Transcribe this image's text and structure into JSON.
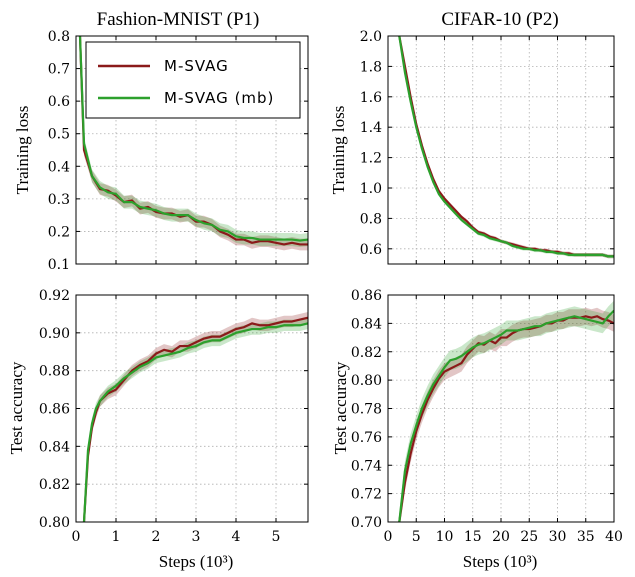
{
  "colors": {
    "m_svag": "#8b1a1a",
    "m_svag_mb": "#2ca02c"
  },
  "legend": {
    "placement": "top-right",
    "entries": [
      "M-SVAG",
      "M-SVAG (mb)"
    ]
  },
  "chart_data": [
    {
      "type": "line",
      "title": "Fashion-MNIST (P1)",
      "xlabel": "",
      "ylabel": "Training loss",
      "xlim": [
        0,
        5.8
      ],
      "ylim": [
        0.1,
        0.8
      ],
      "xticks": [
        0,
        1,
        2,
        3,
        4,
        5
      ],
      "yticks": [
        0.1,
        0.2,
        0.3,
        0.4,
        0.5,
        0.6,
        0.7,
        0.8
      ],
      "yticklabels": [
        "0.1",
        "0.2",
        "0.3",
        "0.4",
        "0.5",
        "0.6",
        "0.7",
        "0.8"
      ],
      "grid": true,
      "legend": true,
      "series": [
        {
          "name": "M-SVAG",
          "color": "#8b1a1a",
          "x": [
            0.1,
            0.2,
            0.4,
            0.6,
            0.8,
            1.0,
            1.2,
            1.4,
            1.6,
            1.8,
            2.0,
            2.2,
            2.4,
            2.6,
            2.8,
            3.0,
            3.2,
            3.4,
            3.6,
            3.8,
            4.0,
            4.2,
            4.4,
            4.6,
            4.8,
            5.0,
            5.2,
            5.4,
            5.6,
            5.8
          ],
          "y": [
            0.8,
            0.45,
            0.37,
            0.33,
            0.325,
            0.31,
            0.29,
            0.295,
            0.27,
            0.275,
            0.26,
            0.255,
            0.255,
            0.245,
            0.25,
            0.23,
            0.23,
            0.22,
            0.2,
            0.19,
            0.175,
            0.175,
            0.165,
            0.17,
            0.17,
            0.165,
            0.16,
            0.165,
            0.16,
            0.16
          ],
          "band": 0.018
        },
        {
          "name": "M-SVAG (mb)",
          "color": "#2ca02c",
          "x": [
            0.1,
            0.2,
            0.4,
            0.6,
            0.8,
            1.0,
            1.2,
            1.4,
            1.6,
            1.8,
            2.0,
            2.2,
            2.4,
            2.6,
            2.8,
            3.0,
            3.2,
            3.4,
            3.6,
            3.8,
            4.0,
            4.2,
            4.4,
            4.6,
            4.8,
            5.0,
            5.2,
            5.4,
            5.6,
            5.8
          ],
          "y": [
            0.8,
            0.47,
            0.37,
            0.335,
            0.32,
            0.315,
            0.29,
            0.29,
            0.275,
            0.27,
            0.265,
            0.255,
            0.25,
            0.25,
            0.25,
            0.235,
            0.225,
            0.22,
            0.205,
            0.2,
            0.185,
            0.18,
            0.18,
            0.175,
            0.175,
            0.175,
            0.175,
            0.175,
            0.172,
            0.175
          ],
          "band": 0.02
        }
      ]
    },
    {
      "type": "line",
      "title": "CIFAR-10 (P2)",
      "xlabel": "",
      "ylabel": "Training loss",
      "xlim": [
        0,
        40
      ],
      "ylim": [
        0.5,
        2.0
      ],
      "xticks": [
        0,
        5,
        10,
        15,
        20,
        25,
        30,
        35,
        40
      ],
      "yticks": [
        0.6,
        0.8,
        1.0,
        1.2,
        1.4,
        1.6,
        1.8,
        2.0
      ],
      "yticklabels": [
        "0.6",
        "0.8",
        "1.0",
        "1.2",
        "1.4",
        "1.6",
        "1.8",
        "2.0"
      ],
      "grid": true,
      "legend": false,
      "series": [
        {
          "name": "M-SVAG",
          "color": "#8b1a1a",
          "x": [
            2,
            3,
            4,
            5,
            6,
            7,
            8,
            9,
            10,
            11,
            12,
            13,
            14,
            15,
            16,
            17,
            18,
            19,
            20,
            21,
            22,
            23,
            24,
            25,
            26,
            27,
            28,
            29,
            30,
            31,
            32,
            33,
            34,
            35,
            36,
            37,
            38,
            39,
            40
          ],
          "y": [
            2.0,
            1.8,
            1.6,
            1.42,
            1.28,
            1.16,
            1.06,
            0.98,
            0.93,
            0.89,
            0.85,
            0.81,
            0.78,
            0.74,
            0.71,
            0.7,
            0.68,
            0.67,
            0.65,
            0.64,
            0.63,
            0.62,
            0.61,
            0.6,
            0.6,
            0.59,
            0.59,
            0.58,
            0.58,
            0.57,
            0.57,
            0.56,
            0.56,
            0.56,
            0.56,
            0.56,
            0.56,
            0.55,
            0.55
          ],
          "band": 0.012
        },
        {
          "name": "M-SVAG (mb)",
          "color": "#2ca02c",
          "x": [
            2,
            3,
            4,
            5,
            6,
            7,
            8,
            9,
            10,
            11,
            12,
            13,
            14,
            15,
            16,
            17,
            18,
            19,
            20,
            21,
            22,
            23,
            24,
            25,
            26,
            27,
            28,
            29,
            30,
            31,
            32,
            33,
            34,
            35,
            36,
            37,
            38,
            39,
            40
          ],
          "y": [
            2.0,
            1.76,
            1.57,
            1.4,
            1.26,
            1.14,
            1.04,
            0.96,
            0.91,
            0.87,
            0.83,
            0.79,
            0.76,
            0.73,
            0.7,
            0.69,
            0.67,
            0.66,
            0.65,
            0.64,
            0.62,
            0.61,
            0.6,
            0.6,
            0.59,
            0.59,
            0.58,
            0.58,
            0.57,
            0.57,
            0.56,
            0.56,
            0.56,
            0.56,
            0.56,
            0.56,
            0.56,
            0.55,
            0.55
          ],
          "band": 0.012
        }
      ]
    },
    {
      "type": "line",
      "title": "",
      "xlabel": "Steps (10³)",
      "ylabel": "Test accuracy",
      "xlim": [
        0,
        5.8
      ],
      "ylim": [
        0.8,
        0.92
      ],
      "xticks": [
        0,
        1,
        2,
        3,
        4,
        5
      ],
      "yticks": [
        0.8,
        0.82,
        0.84,
        0.86,
        0.88,
        0.9,
        0.92
      ],
      "yticklabels": [
        "0.80",
        "0.82",
        "0.84",
        "0.86",
        "0.88",
        "0.90",
        "0.92"
      ],
      "grid": true,
      "legend": false,
      "series": [
        {
          "name": "M-SVAG",
          "color": "#8b1a1a",
          "x": [
            0.2,
            0.3,
            0.4,
            0.5,
            0.6,
            0.8,
            1.0,
            1.2,
            1.4,
            1.6,
            1.8,
            2.0,
            2.2,
            2.4,
            2.6,
            2.8,
            3.0,
            3.2,
            3.4,
            3.6,
            3.8,
            4.0,
            4.2,
            4.4,
            4.6,
            4.8,
            5.0,
            5.2,
            5.4,
            5.6,
            5.8
          ],
          "y": [
            0.8,
            0.835,
            0.85,
            0.858,
            0.864,
            0.868,
            0.87,
            0.875,
            0.88,
            0.883,
            0.885,
            0.889,
            0.891,
            0.89,
            0.893,
            0.893,
            0.895,
            0.897,
            0.898,
            0.898,
            0.9,
            0.902,
            0.903,
            0.905,
            0.904,
            0.904,
            0.905,
            0.906,
            0.906,
            0.907,
            0.908
          ],
          "band": 0.003
        },
        {
          "name": "M-SVAG (mb)",
          "color": "#2ca02c",
          "x": [
            0.2,
            0.3,
            0.4,
            0.5,
            0.6,
            0.8,
            1.0,
            1.2,
            1.4,
            1.6,
            1.8,
            2.0,
            2.2,
            2.4,
            2.6,
            2.8,
            3.0,
            3.2,
            3.4,
            3.6,
            3.8,
            4.0,
            4.2,
            4.4,
            4.6,
            4.8,
            5.0,
            5.2,
            5.4,
            5.6,
            5.8
          ],
          "y": [
            0.8,
            0.838,
            0.852,
            0.86,
            0.864,
            0.869,
            0.872,
            0.876,
            0.879,
            0.882,
            0.884,
            0.887,
            0.888,
            0.889,
            0.89,
            0.892,
            0.893,
            0.895,
            0.896,
            0.896,
            0.898,
            0.9,
            0.901,
            0.902,
            0.902,
            0.903,
            0.903,
            0.904,
            0.904,
            0.904,
            0.905
          ],
          "band": 0.003
        }
      ]
    },
    {
      "type": "line",
      "title": "",
      "xlabel": "Steps (10³)",
      "ylabel": "Test accuracy",
      "xlim": [
        0,
        40
      ],
      "ylim": [
        0.7,
        0.86
      ],
      "xticks": [
        0,
        5,
        10,
        15,
        20,
        25,
        30,
        35,
        40
      ],
      "yticks": [
        0.7,
        0.72,
        0.74,
        0.76,
        0.78,
        0.8,
        0.82,
        0.84,
        0.86
      ],
      "yticklabels": [
        "0.70",
        "0.72",
        "0.74",
        "0.76",
        "0.78",
        "0.80",
        "0.82",
        "0.84",
        "0.86"
      ],
      "grid": true,
      "legend": false,
      "series": [
        {
          "name": "M-SVAG",
          "color": "#8b1a1a",
          "x": [
            2,
            3,
            4,
            5,
            6,
            7,
            8,
            9,
            10,
            11,
            12,
            13,
            14,
            15,
            16,
            17,
            18,
            19,
            20,
            21,
            22,
            23,
            24,
            25,
            26,
            27,
            28,
            29,
            30,
            31,
            32,
            33,
            34,
            35,
            36,
            37,
            38,
            39,
            40
          ],
          "y": [
            0.7,
            0.728,
            0.748,
            0.764,
            0.776,
            0.786,
            0.794,
            0.801,
            0.806,
            0.808,
            0.81,
            0.812,
            0.818,
            0.822,
            0.826,
            0.825,
            0.828,
            0.826,
            0.83,
            0.83,
            0.833,
            0.835,
            0.836,
            0.836,
            0.837,
            0.838,
            0.84,
            0.84,
            0.842,
            0.842,
            0.844,
            0.844,
            0.844,
            0.845,
            0.844,
            0.845,
            0.843,
            0.842,
            0.84
          ],
          "band": 0.006
        },
        {
          "name": "M-SVAG (mb)",
          "color": "#2ca02c",
          "x": [
            2,
            3,
            4,
            5,
            6,
            7,
            8,
            9,
            10,
            11,
            12,
            13,
            14,
            15,
            16,
            17,
            18,
            19,
            20,
            21,
            22,
            23,
            24,
            25,
            26,
            27,
            28,
            29,
            30,
            31,
            32,
            33,
            34,
            35,
            36,
            37,
            38,
            39,
            40
          ],
          "y": [
            0.7,
            0.736,
            0.755,
            0.768,
            0.78,
            0.789,
            0.797,
            0.803,
            0.809,
            0.814,
            0.815,
            0.817,
            0.82,
            0.823,
            0.825,
            0.826,
            0.828,
            0.83,
            0.832,
            0.835,
            0.835,
            0.835,
            0.836,
            0.837,
            0.838,
            0.838,
            0.84,
            0.841,
            0.842,
            0.843,
            0.844,
            0.845,
            0.844,
            0.843,
            0.842,
            0.841,
            0.84,
            0.845,
            0.849
          ],
          "band": 0.007
        }
      ]
    }
  ]
}
